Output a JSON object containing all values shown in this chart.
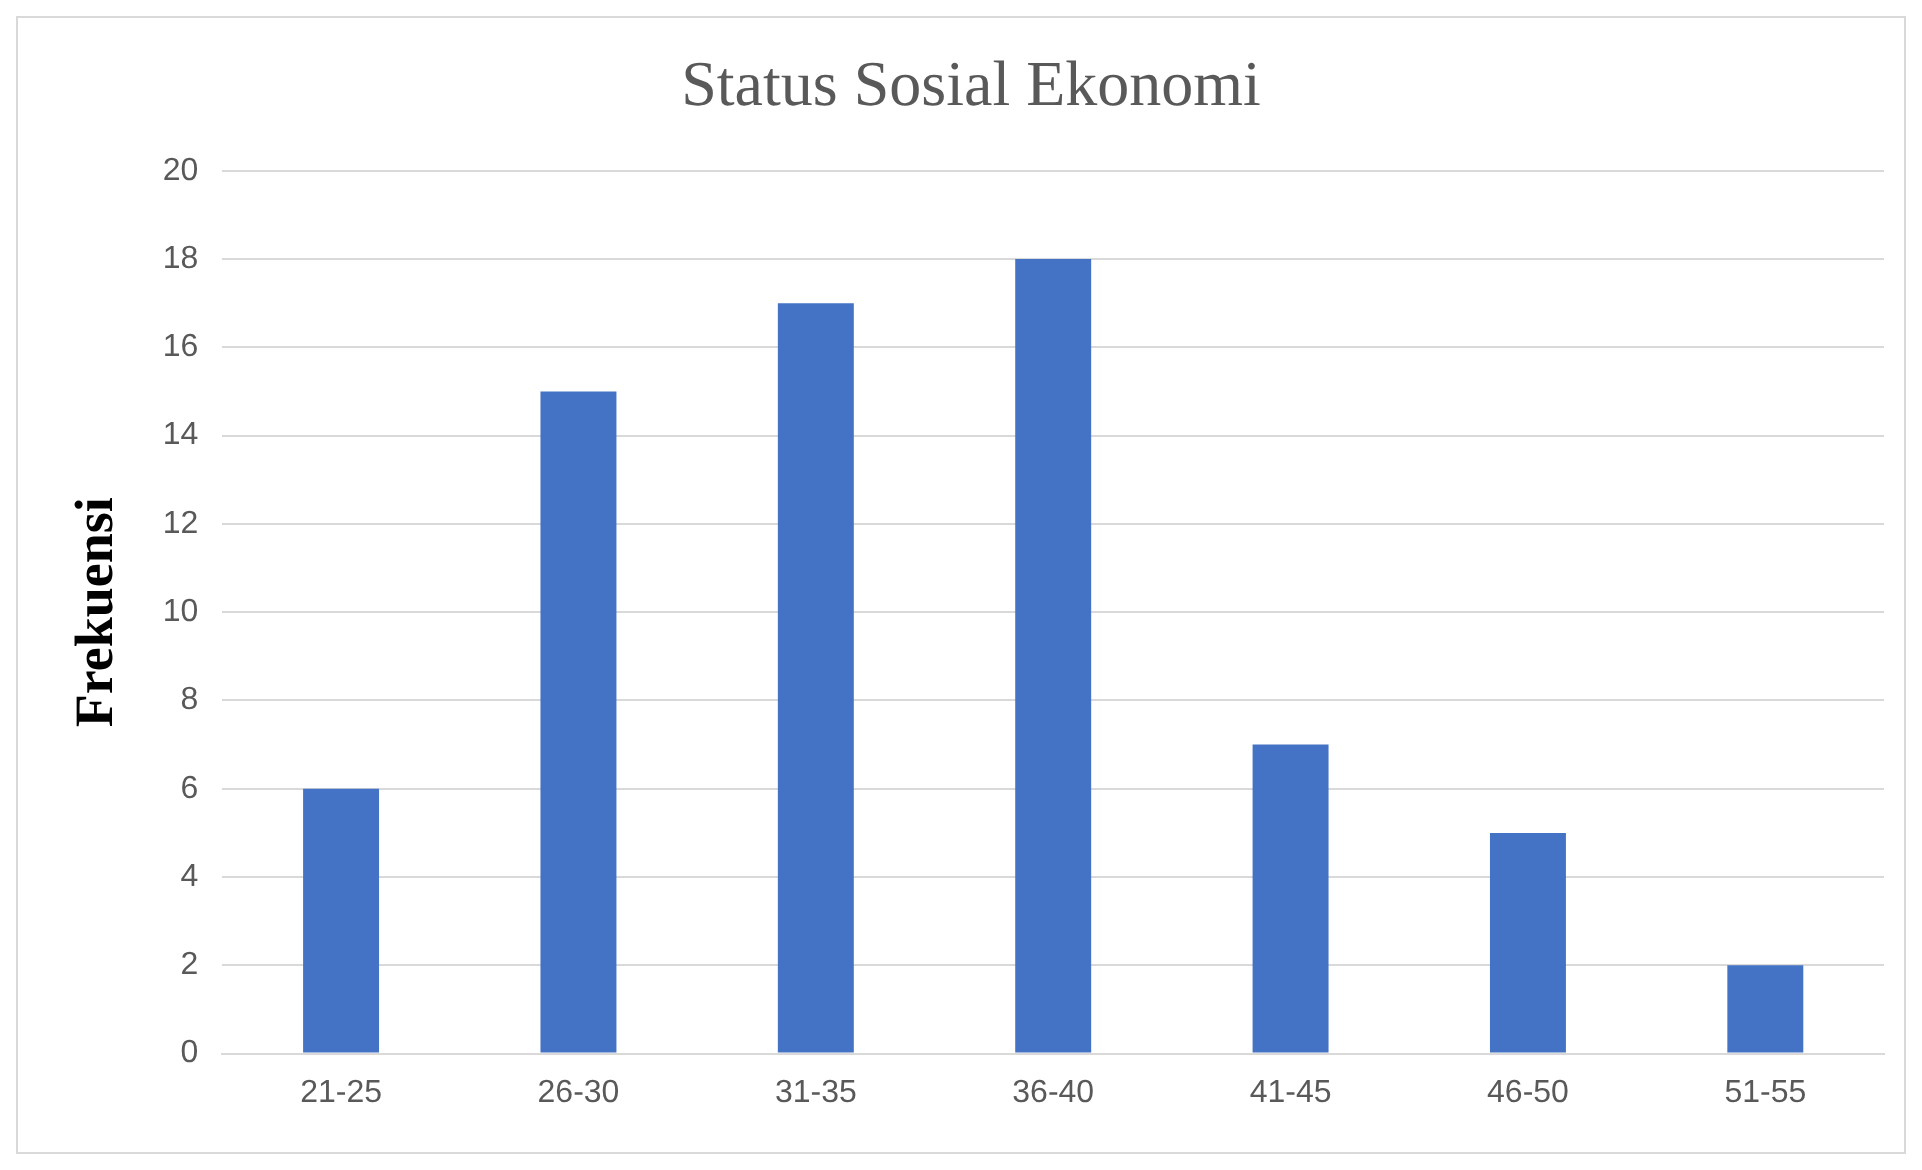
{
  "chart_data": {
    "type": "bar",
    "title": "Status Sosial Ekonomi",
    "ylabel": "Frekuensi",
    "categories": [
      "21-25",
      "26-30",
      "31-35",
      "36-40",
      "41-45",
      "46-50",
      "51-55"
    ],
    "values": [
      6,
      15,
      17,
      18,
      7,
      5,
      2
    ],
    "color": "#4472c4",
    "ylim": [
      0,
      20
    ],
    "yticks": [
      0,
      2,
      4,
      6,
      8,
      10,
      12,
      14,
      16,
      18,
      20
    ],
    "grid": "y"
  }
}
